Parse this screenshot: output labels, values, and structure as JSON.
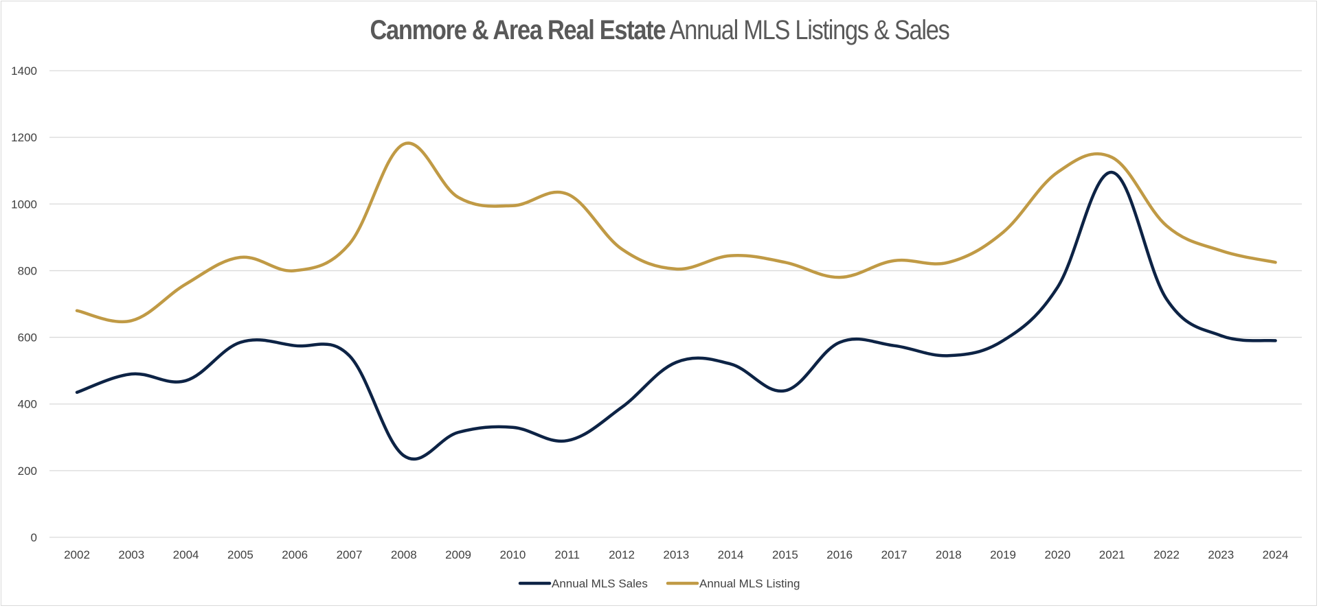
{
  "chart_data": {
    "type": "line",
    "title_bold": "Canmore & Area Real Estate",
    "title_rest": "Annual MLS Listings & Sales",
    "xlabel": "",
    "ylabel": "",
    "ylim": [
      0,
      1400
    ],
    "yticks": [
      "0",
      "200",
      "400",
      "600",
      "800",
      "1000",
      "1200",
      "1400"
    ],
    "categories": [
      "2002",
      "2003",
      "2004",
      "2005",
      "2006",
      "2007",
      "2008",
      "2009",
      "2010",
      "2011",
      "2012",
      "2013",
      "2014",
      "2015",
      "2016",
      "2017",
      "2018",
      "2019",
      "2020",
      "2021",
      "2022",
      "2023",
      "2024"
    ],
    "grid": true,
    "legend": "bottom",
    "series": [
      {
        "name": "Annual MLS Sales",
        "color": "#0d2345",
        "values": [
          435,
          490,
          470,
          585,
          575,
          545,
          245,
          315,
          330,
          290,
          390,
          525,
          520,
          440,
          585,
          575,
          545,
          590,
          750,
          1095,
          715,
          605,
          590
        ]
      },
      {
        "name": "Annual MLS Listing",
        "color": "#c09a45",
        "values": [
          680,
          650,
          760,
          840,
          800,
          880,
          1180,
          1020,
          995,
          1030,
          865,
          805,
          845,
          825,
          780,
          830,
          825,
          915,
          1095,
          1140,
          935,
          860,
          825
        ]
      }
    ]
  }
}
